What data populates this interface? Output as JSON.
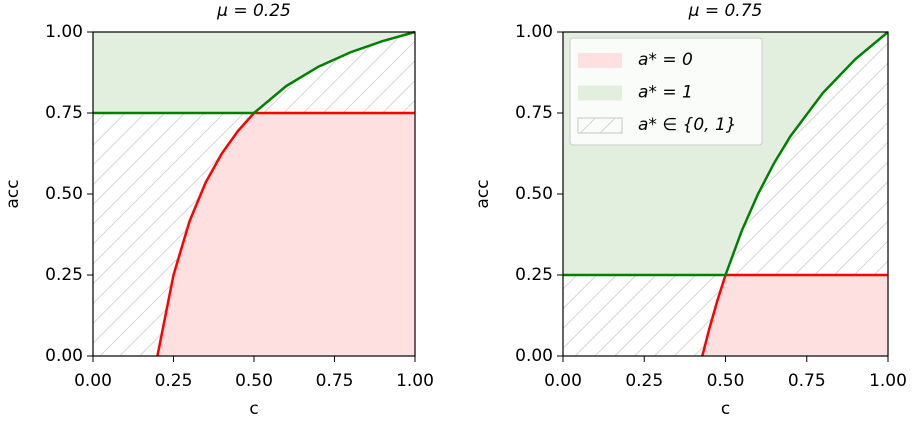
{
  "chart_data": [
    {
      "type": "line",
      "title": "μ = 0.25",
      "xlabel": "c",
      "ylabel": "acc",
      "xlim": [
        0,
        1
      ],
      "ylim": [
        0,
        1
      ],
      "xticks": [
        {
          "value": 0,
          "label": "0.00"
        },
        {
          "value": 0.25,
          "label": "0.25"
        },
        {
          "value": 0.5,
          "label": "0.50"
        },
        {
          "value": 0.75,
          "label": "0.75"
        },
        {
          "value": 1,
          "label": "1.00"
        }
      ],
      "yticks": [
        {
          "value": 0,
          "label": "0.00"
        },
        {
          "value": 0.25,
          "label": "0.25"
        },
        {
          "value": 0.5,
          "label": "0.50"
        },
        {
          "value": 0.75,
          "label": "0.75"
        },
        {
          "value": 1,
          "label": "1.00"
        }
      ],
      "series": [
        {
          "color": "#ff0000",
          "fill": "#ffe0e0",
          "x": [
            0.2,
            0.25,
            0.3,
            0.35,
            0.4,
            0.45,
            0.5,
            1.0
          ],
          "values": [
            0,
            0.25,
            0.4167,
            0.5357,
            0.625,
            0.6944,
            0.75,
            0.75
          ]
        },
        {
          "color": "#008000",
          "fill": "#e2efdf",
          "x": [
            0,
            0.5,
            0.6,
            0.7,
            0.8,
            0.9,
            1.0
          ],
          "values": [
            0.75,
            0.75,
            0.8333,
            0.8929,
            0.9375,
            0.9722,
            1
          ]
        }
      ]
    },
    {
      "type": "line",
      "title": "μ = 0.75",
      "xlabel": "c",
      "ylabel": "acc",
      "xlim": [
        0,
        1
      ],
      "ylim": [
        0,
        1
      ],
      "xticks": [
        {
          "value": 0,
          "label": "0.00"
        },
        {
          "value": 0.25,
          "label": "0.25"
        },
        {
          "value": 0.5,
          "label": "0.50"
        },
        {
          "value": 0.75,
          "label": "0.75"
        },
        {
          "value": 1,
          "label": "1.00"
        }
      ],
      "yticks": [
        {
          "value": 0,
          "label": "0.00"
        },
        {
          "value": 0.25,
          "label": "0.25"
        },
        {
          "value": 0.5,
          "label": "0.50"
        },
        {
          "value": 0.75,
          "label": "0.75"
        },
        {
          "value": 1,
          "label": "1.00"
        }
      ],
      "series": [
        {
          "color": "#ff0000",
          "fill": "#ffe0e0",
          "x": [
            0.4286,
            0.45,
            0.475,
            0.5,
            1.0
          ],
          "values": [
            0,
            0.0833,
            0.1711,
            0.25,
            0.25
          ]
        },
        {
          "color": "#008000",
          "fill": "#e2efdf",
          "x": [
            0,
            0.5,
            0.55,
            0.6,
            0.65,
            0.7,
            0.8,
            0.9,
            1.0
          ],
          "values": [
            0.25,
            0.25,
            0.3864,
            0.5,
            0.5962,
            0.6786,
            0.8125,
            0.9167,
            1
          ]
        }
      ],
      "legend": {
        "loc": "upper left",
        "entries": [
          "a* = 0",
          "a* = 1",
          "a* ∈ {0, 1}"
        ]
      }
    }
  ]
}
